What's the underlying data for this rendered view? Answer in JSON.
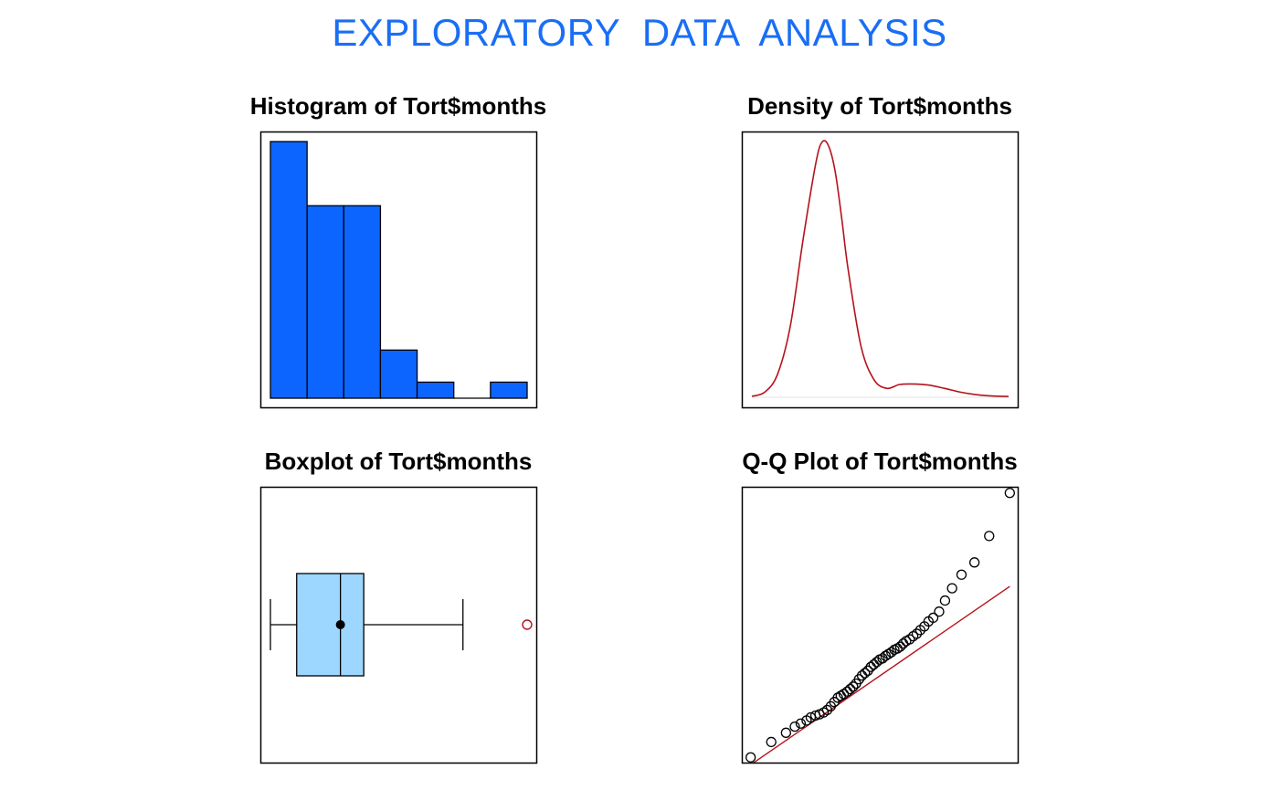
{
  "main_title": "EXPLORATORY  DATA  ANALYSIS",
  "colors": {
    "title": "#1a6ef5",
    "hist_fill": "#0d65ff",
    "box_fill": "#9dd7ff",
    "density_line": "#b5121b",
    "outlier": "#b5121b",
    "qq_line": "#b5121b"
  },
  "chart_data": [
    {
      "type": "bar",
      "subtype": "histogram",
      "title": "Histogram of Tort$months",
      "bins": [
        0,
        1,
        2,
        3,
        4,
        5,
        6,
        7
      ],
      "counts": [
        16,
        12,
        12,
        3,
        1,
        0,
        1
      ],
      "ylim": [
        0,
        16
      ],
      "axes_visible": false
    },
    {
      "type": "line",
      "subtype": "density",
      "title": "Density of Tort$months",
      "x": [
        0,
        0.4,
        0.8,
        1.2,
        1.6,
        2.0,
        2.2,
        2.4,
        2.6,
        2.8,
        3.0,
        3.4,
        3.8,
        4.2,
        4.6,
        5.0,
        5.5,
        6.0,
        6.5,
        7.0,
        7.5,
        8.0
      ],
      "y": [
        0.004,
        0.02,
        0.09,
        0.28,
        0.62,
        0.92,
        1.0,
        0.98,
        0.88,
        0.7,
        0.5,
        0.2,
        0.07,
        0.035,
        0.05,
        0.052,
        0.048,
        0.035,
        0.02,
        0.01,
        0.005,
        0.003
      ],
      "xlim": [
        0,
        8
      ],
      "ylim": [
        0,
        1.0
      ],
      "axes_visible": false
    },
    {
      "type": "box",
      "title": "Boxplot of Tort$months",
      "min": 0,
      "q1": 0.45,
      "median": 1.2,
      "mean": 1.2,
      "q3": 1.6,
      "whisker_high": 3.3,
      "outliers": [
        4.4
      ],
      "xlim": [
        0,
        4.4
      ],
      "axes_visible": false
    },
    {
      "type": "scatter",
      "subtype": "qq",
      "title": "Q-Q Plot of Tort$months",
      "theoretical": [
        -2.2,
        -1.85,
        -1.6,
        -1.45,
        -1.35,
        -1.25,
        -1.18,
        -1.1,
        -1.03,
        -0.96,
        -0.9,
        -0.84,
        -0.78,
        -0.72,
        -0.67,
        -0.62,
        -0.56,
        -0.51,
        -0.46,
        -0.41,
        -0.36,
        -0.31,
        -0.26,
        -0.21,
        -0.16,
        -0.11,
        -0.06,
        -0.01,
        0.04,
        0.09,
        0.14,
        0.19,
        0.24,
        0.29,
        0.34,
        0.39,
        0.44,
        0.5,
        0.56,
        0.62,
        0.68,
        0.75,
        0.82,
        0.9,
        1.0,
        1.1,
        1.22,
        1.38,
        1.6,
        1.85,
        2.2
      ],
      "sample": [
        0.05,
        0.3,
        0.45,
        0.55,
        0.6,
        0.65,
        0.7,
        0.73,
        0.75,
        0.78,
        0.82,
        0.88,
        0.95,
        1.02,
        1.05,
        1.08,
        1.12,
        1.16,
        1.2,
        1.25,
        1.32,
        1.38,
        1.42,
        1.46,
        1.52,
        1.56,
        1.6,
        1.64,
        1.66,
        1.7,
        1.73,
        1.76,
        1.8,
        1.82,
        1.85,
        1.9,
        1.94,
        1.97,
        2.02,
        2.06,
        2.12,
        2.18,
        2.26,
        2.32,
        2.42,
        2.6,
        2.8,
        3.02,
        3.22,
        3.65,
        4.35
      ],
      "line": [
        [
          -2.2,
          -0.07
        ],
        [
          2.2,
          2.83
        ]
      ],
      "xlim": [
        -2.35,
        2.35
      ],
      "ylim": [
        -0.05,
        4.45
      ],
      "axes_visible": false
    }
  ]
}
